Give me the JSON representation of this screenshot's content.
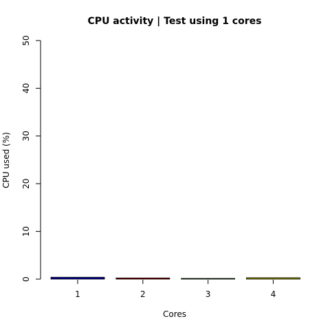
{
  "chart_data": {
    "type": "bar",
    "title": "CPU activity | Test using 1 cores",
    "xlabel": "Cores",
    "ylabel": "CPU used (%)",
    "categories": [
      "1",
      "2",
      "3",
      "4"
    ],
    "values": [
      0.4,
      0.25,
      0.15,
      0.3
    ],
    "colors": [
      "#00008b",
      "#8b0000",
      "#006400",
      "#8b8b00"
    ],
    "ylim": [
      0,
      50
    ],
    "yticks": [
      0,
      10,
      20,
      30,
      40,
      50
    ],
    "ytick_labels": [
      "0",
      "10",
      "20",
      "30",
      "40",
      "50"
    ],
    "grid": false,
    "legend": "none"
  }
}
